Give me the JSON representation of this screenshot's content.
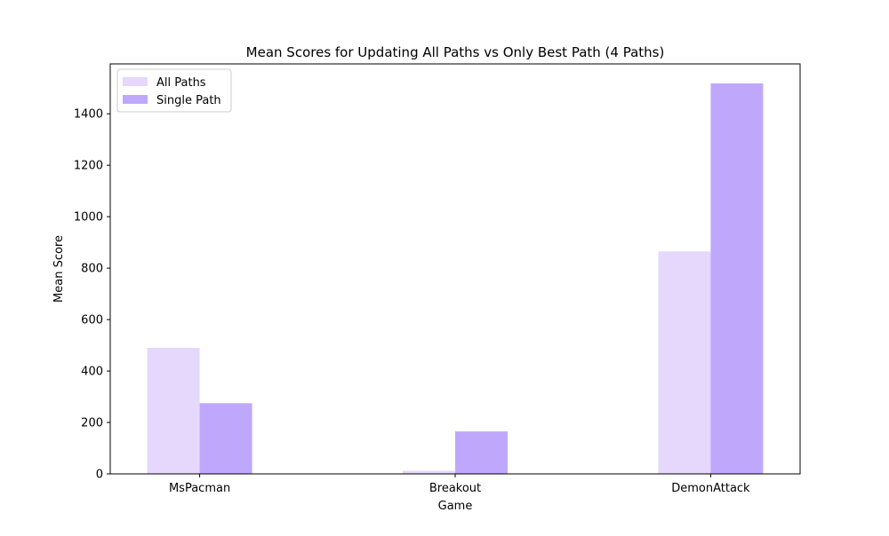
{
  "chart_data": {
    "type": "bar",
    "title": "Mean Scores for Updating All Paths vs Only Best Path (4 Paths)",
    "xlabel": "Game",
    "ylabel": "Mean Score",
    "categories": [
      "MsPacman",
      "Breakout",
      "DemonAttack"
    ],
    "series": [
      {
        "name": "All Paths",
        "values": [
          490,
          12,
          865
        ],
        "color": "#e6d7fd"
      },
      {
        "name": "Single Path",
        "values": [
          275,
          165,
          1518
        ],
        "color": "#bfa8fc"
      }
    ],
    "ylim": [
      0,
      1594
    ],
    "yticks": [
      0,
      200,
      400,
      600,
      800,
      1000,
      1200,
      1400
    ],
    "grid": false,
    "legend_position": "top-left"
  }
}
